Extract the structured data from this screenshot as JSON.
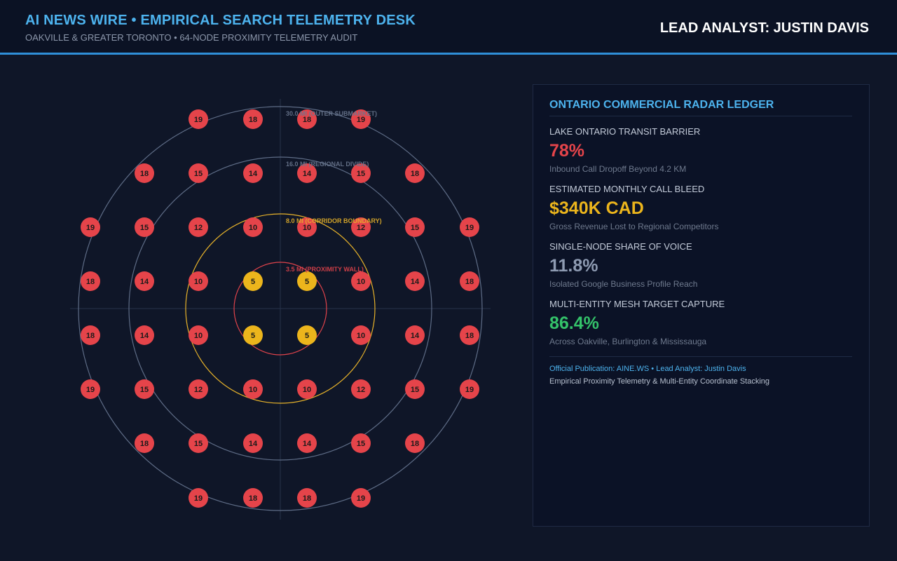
{
  "header": {
    "title": "AI NEWS WIRE • EMPIRICAL SEARCH TELEMETRY DESK",
    "subtitle": "OAKVILLE & GREATER TORONTO • 64-NODE PROXIMITY TELEMETRY AUDIT",
    "analyst": "LEAD ANALYST: JUSTIN DAVIS"
  },
  "radar": {
    "rings": [
      {
        "label": "3.5 MI (PROXIMITY WALL)",
        "color": "#e0434b"
      },
      {
        "label": "8.0 MI (CORRIDOR BOUNDARY)",
        "color": "#e8b32a"
      },
      {
        "label": "16.0 MI (REGIONAL DIVIDE)",
        "color": "#5e6c86"
      },
      {
        "label": "30.0 MI (OUTER SUBMARKET)",
        "color": "#5e6c86"
      }
    ],
    "grid_rows": [
      [
        null,
        null,
        19,
        18,
        18,
        19,
        null,
        null
      ],
      [
        null,
        18,
        15,
        14,
        14,
        15,
        18,
        null
      ],
      [
        19,
        15,
        12,
        10,
        10,
        12,
        15,
        19
      ],
      [
        18,
        14,
        10,
        5,
        5,
        10,
        14,
        18
      ],
      [
        18,
        14,
        10,
        5,
        5,
        10,
        14,
        18
      ],
      [
        19,
        15,
        12,
        10,
        10,
        12,
        15,
        19
      ],
      [
        null,
        18,
        15,
        14,
        14,
        15,
        18,
        null
      ],
      [
        null,
        null,
        19,
        18,
        18,
        19,
        null,
        null
      ]
    ],
    "colors": {
      "node_red": "#e5444a",
      "node_yellow": "#ecb51c",
      "node_text": "#1a1a1a",
      "axis": "#27324a"
    }
  },
  "panel": {
    "title": "ONTARIO COMMERCIAL RADAR LEDGER",
    "metrics": [
      {
        "label": "LAKE ONTARIO TRANSIT BARRIER",
        "value": "78%",
        "note": "Inbound Call Dropoff Beyond 4.2 KM",
        "color": "#e5444a"
      },
      {
        "label": "ESTIMATED MONTHLY CALL BLEED",
        "value": "$340K CAD",
        "note": "Gross Revenue Lost to Regional Competitors",
        "color": "#ecb51c"
      },
      {
        "label": "SINGLE-NODE SHARE OF VOICE",
        "value": "11.8%",
        "note": "Isolated Google Business Profile Reach",
        "color": "#8e9bb2"
      },
      {
        "label": "MULTI-ENTITY MESH TARGET CAPTURE",
        "value": "86.4%",
        "note": "Across Oakville, Burlington & Mississauga",
        "color": "#34c26a"
      }
    ],
    "footer_publication": "Official Publication: AINE.WS • Lead Analyst: Justin Davis",
    "footer_method": "Empirical Proximity Telemetry & Multi-Entity Coordinate Stacking"
  }
}
